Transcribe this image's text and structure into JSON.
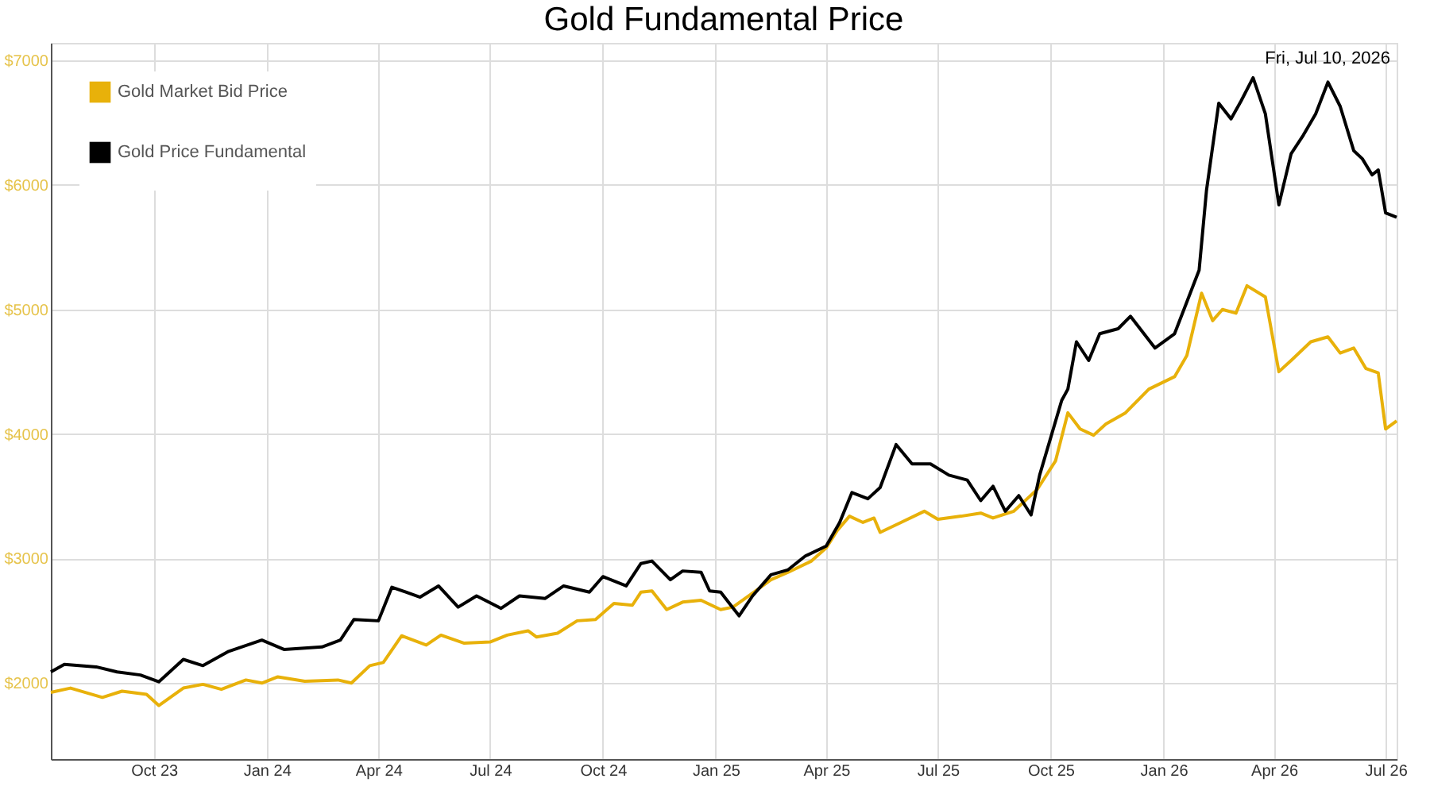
{
  "chart_data": {
    "type": "line",
    "title": "Gold Fundamental Price",
    "annotations": [
      "Fri, Jul 10, 2026"
    ],
    "xlim": [
      "2023-07-09",
      "2026-07-10"
    ],
    "xticks": [
      {
        "value": "2023-10-01",
        "label": "Oct 23"
      },
      {
        "value": "2024-01-01",
        "label": "Jan 24"
      },
      {
        "value": "2024-04-01",
        "label": "Apr 24"
      },
      {
        "value": "2024-07-01",
        "label": "Jul 24"
      },
      {
        "value": "2024-10-01",
        "label": "Oct 24"
      },
      {
        "value": "2025-01-01",
        "label": "Jan 25"
      },
      {
        "value": "2025-04-01",
        "label": "Apr 25"
      },
      {
        "value": "2025-07-01",
        "label": "Jul 25"
      },
      {
        "value": "2025-10-01",
        "label": "Oct 25"
      },
      {
        "value": "2026-01-01",
        "label": "Jan 26"
      },
      {
        "value": "2026-04-01",
        "label": "Apr 26"
      },
      {
        "value": "2026-07-01",
        "label": "Jul 26"
      }
    ],
    "ylim": [
      1390,
      7140
    ],
    "yticks": [
      {
        "value": 2000,
        "label": "$2000"
      },
      {
        "value": 3000,
        "label": "$3000"
      },
      {
        "value": 4000,
        "label": "$4000"
      },
      {
        "value": 5000,
        "label": "$5000"
      },
      {
        "value": 6000,
        "label": "$6000"
      },
      {
        "value": 7000,
        "label": "$7000"
      }
    ],
    "grid": true,
    "legend": "top left",
    "marker": "none",
    "line_style": "solid",
    "series": [
      {
        "name": "Gold Market Bid Price",
        "color": "#e8b10a",
        "x": [
          "2023-07-09",
          "2023-07-25",
          "2023-08-20",
          "2023-09-05",
          "2023-09-25",
          "2023-10-05",
          "2023-10-25",
          "2023-11-10",
          "2023-11-25",
          "2023-12-15",
          "2023-12-28",
          "2024-01-10",
          "2024-02-01",
          "2024-02-28",
          "2024-03-10",
          "2024-03-25",
          "2024-04-05",
          "2024-04-20",
          "2024-05-10",
          "2024-05-22",
          "2024-06-10",
          "2024-07-01",
          "2024-07-15",
          "2024-08-01",
          "2024-08-08",
          "2024-08-25",
          "2024-09-10",
          "2024-09-25",
          "2024-10-10",
          "2024-10-25",
          "2024-11-01",
          "2024-11-10",
          "2024-11-22",
          "2024-12-05",
          "2024-12-20",
          "2025-01-05",
          "2025-01-15",
          "2025-02-01",
          "2025-02-15",
          "2025-03-01",
          "2025-03-20",
          "2025-04-01",
          "2025-04-10",
          "2025-04-20",
          "2025-05-01",
          "2025-05-10",
          "2025-05-15",
          "2025-06-01",
          "2025-06-20",
          "2025-07-01",
          "2025-07-20",
          "2025-08-05",
          "2025-08-15",
          "2025-09-01",
          "2025-09-20",
          "2025-10-05",
          "2025-10-15",
          "2025-10-25",
          "2025-11-05",
          "2025-11-15",
          "2025-12-01",
          "2025-12-20",
          "2026-01-10",
          "2026-01-20",
          "2026-02-01",
          "2026-02-10",
          "2026-02-18",
          "2026-03-01",
          "2026-03-10",
          "2026-03-25",
          "2026-04-05",
          "2026-04-15",
          "2026-05-01",
          "2026-05-15",
          "2026-05-25",
          "2026-06-05",
          "2026-06-15",
          "2026-06-25",
          "2026-07-01",
          "2026-07-10"
        ],
        "values": [
          1925,
          1960,
          1885,
          1935,
          1910,
          1820,
          1960,
          1990,
          1950,
          2025,
          2000,
          2050,
          2015,
          2025,
          2000,
          2140,
          2165,
          2380,
          2305,
          2385,
          2320,
          2330,
          2385,
          2420,
          2370,
          2400,
          2500,
          2510,
          2640,
          2625,
          2730,
          2740,
          2590,
          2650,
          2665,
          2590,
          2610,
          2730,
          2830,
          2890,
          2980,
          3085,
          3225,
          3340,
          3290,
          3325,
          3210,
          3290,
          3380,
          3315,
          3340,
          3365,
          3325,
          3380,
          3555,
          3785,
          4170,
          4040,
          3990,
          4080,
          4170,
          4360,
          4460,
          4630,
          5130,
          4910,
          5000,
          4970,
          5190,
          5100,
          4500,
          4590,
          4740,
          4780,
          4650,
          4690,
          4525,
          4490,
          4040,
          4105
        ]
      },
      {
        "name": "Gold Price Fundamental",
        "color": "#000000",
        "x": [
          "2023-07-09",
          "2023-07-20",
          "2023-08-15",
          "2023-09-01",
          "2023-09-20",
          "2023-10-05",
          "2023-10-25",
          "2023-11-10",
          "2023-12-01",
          "2023-12-28",
          "2024-01-15",
          "2024-02-15",
          "2024-03-01",
          "2024-03-12",
          "2024-04-01",
          "2024-04-12",
          "2024-05-05",
          "2024-05-20",
          "2024-06-05",
          "2024-06-20",
          "2024-07-10",
          "2024-07-25",
          "2024-08-15",
          "2024-08-30",
          "2024-09-20",
          "2024-10-01",
          "2024-10-20",
          "2024-11-01",
          "2024-11-10",
          "2024-11-25",
          "2024-12-05",
          "2024-12-20",
          "2024-12-27",
          "2025-01-05",
          "2025-01-20",
          "2025-01-31",
          "2025-02-15",
          "2025-03-01",
          "2025-03-15",
          "2025-04-01",
          "2025-04-12",
          "2025-04-22",
          "2025-05-05",
          "2025-05-15",
          "2025-05-28",
          "2025-06-10",
          "2025-06-25",
          "2025-07-10",
          "2025-07-25",
          "2025-08-05",
          "2025-08-15",
          "2025-08-25",
          "2025-09-05",
          "2025-09-15",
          "2025-09-22",
          "2025-10-10",
          "2025-10-15",
          "2025-10-22",
          "2025-11-01",
          "2025-11-10",
          "2025-11-25",
          "2025-12-05",
          "2025-12-25",
          "2026-01-10",
          "2026-01-20",
          "2026-01-30",
          "2026-02-05",
          "2026-02-15",
          "2026-02-25",
          "2026-03-05",
          "2026-03-15",
          "2026-03-25",
          "2026-04-05",
          "2026-04-15",
          "2026-04-25",
          "2026-05-05",
          "2026-05-15",
          "2026-05-25",
          "2026-06-05",
          "2026-06-12",
          "2026-06-20",
          "2026-06-25",
          "2026-07-01",
          "2026-07-10"
        ],
        "values": [
          2090,
          2150,
          2130,
          2090,
          2065,
          2010,
          2190,
          2140,
          2255,
          2345,
          2270,
          2290,
          2345,
          2510,
          2500,
          2770,
          2690,
          2780,
          2610,
          2700,
          2600,
          2700,
          2680,
          2780,
          2730,
          2855,
          2780,
          2960,
          2980,
          2830,
          2900,
          2890,
          2740,
          2730,
          2540,
          2700,
          2870,
          2910,
          3020,
          3100,
          3290,
          3530,
          3480,
          3570,
          3915,
          3760,
          3760,
          3670,
          3630,
          3465,
          3580,
          3380,
          3505,
          3350,
          3670,
          4270,
          4360,
          4740,
          4590,
          4805,
          4845,
          4945,
          4690,
          4805,
          5060,
          5315,
          5955,
          6655,
          6530,
          6670,
          6860,
          6570,
          5840,
          6250,
          6400,
          6570,
          6825,
          6630,
          6275,
          6210,
          6080,
          6120,
          5775,
          5740
        ]
      }
    ]
  }
}
